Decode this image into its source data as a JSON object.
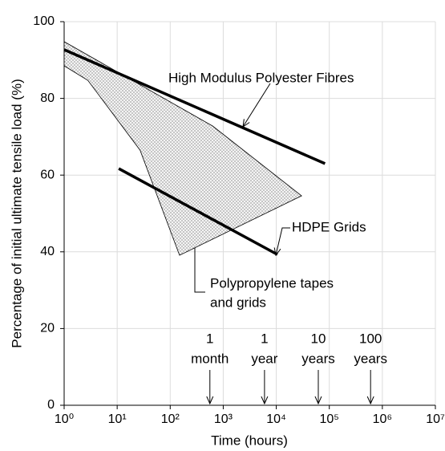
{
  "chart_data": {
    "type": "line",
    "x_label": "Time (hours)",
    "y_label": "Percentage of initial ultimate tensile load (%)",
    "xscale": "log",
    "xlim": [
      1,
      10000000
    ],
    "xticks": [
      {
        "value": 1,
        "label": "10⁰"
      },
      {
        "value": 10,
        "label": "10¹"
      },
      {
        "value": 100,
        "label": "10²"
      },
      {
        "value": 1000,
        "label": "10³"
      },
      {
        "value": 10000,
        "label": "10⁴"
      },
      {
        "value": 100000,
        "label": "10⁵"
      },
      {
        "value": 1000000,
        "label": "10⁶"
      },
      {
        "value": 10000000,
        "label": "10⁷"
      }
    ],
    "ylim": [
      0,
      100
    ],
    "yticks": [
      0,
      20,
      40,
      60,
      80,
      100
    ],
    "grid": true,
    "series": [
      {
        "style": "band",
        "color": "#000000",
        "x": [
          1,
          630,
          30000,
          150,
          27,
          2.8,
          1
        ],
        "values": [
          94.8,
          72.8,
          54.6,
          39.1,
          66.5,
          84.7,
          88.5
        ]
      },
      {
        "style": "line",
        "color": "#000000",
        "x": [
          1,
          83000
        ],
        "values": [
          92.7,
          63
        ]
      },
      {
        "style": "line",
        "color": "#000000",
        "x": [
          10.7,
          10500
        ],
        "values": [
          61.7,
          39.3
        ]
      }
    ],
    "annotations": [
      {
        "text": [
          "High Modulus Polyester Fibres"
        ]
      },
      {
        "text": [
          "HDPE Grids"
        ]
      },
      {
        "text": [
          "Polypropylene tapes",
          "and grids"
        ]
      }
    ],
    "time_markers": [
      {
        "x": 560,
        "text": [
          "1",
          "month"
        ]
      },
      {
        "x": 6000,
        "text": [
          "1",
          "year"
        ]
      },
      {
        "x": 62000,
        "text": [
          "10",
          "years"
        ]
      },
      {
        "x": 600000,
        "text": [
          "100",
          "years"
        ]
      }
    ]
  }
}
